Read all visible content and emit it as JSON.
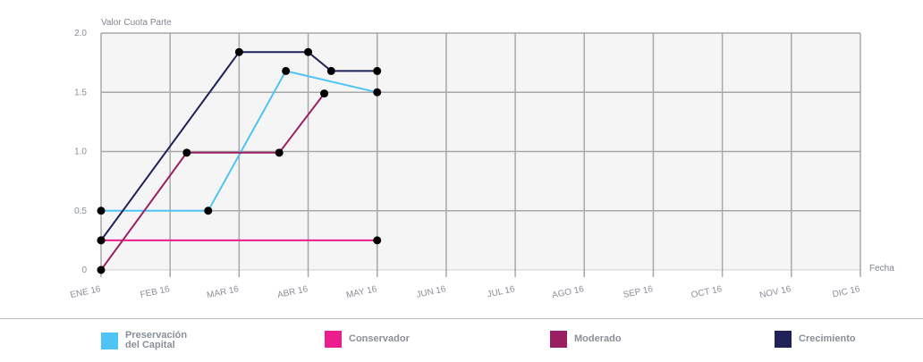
{
  "chart_data": {
    "type": "line",
    "ylabel": "Valor Cuota Parte",
    "xlabel": "Fecha",
    "ylim": [
      0,
      2
    ],
    "y_ticks": [
      {
        "value": 0,
        "label": "0"
      },
      {
        "value": 0.5,
        "label": "0.5"
      },
      {
        "value": 1.0,
        "label": "1.0"
      },
      {
        "value": 1.5,
        "label": "1.5"
      },
      {
        "value": 2.0,
        "label": "2.0"
      }
    ],
    "x_months": [
      "ENE 16",
      "FEB 16",
      "MAR 16",
      "ABR 16",
      "MAY 16",
      "JUN 16",
      "JUL 16",
      "AGO 16",
      "SEP 16",
      "OCT 16",
      "NOV 16",
      "DIC 16"
    ],
    "grid": true,
    "legend_position": "bottom",
    "series": [
      {
        "name": "Preservación\ndel Capital",
        "color": "#4ec3f5",
        "points": [
          {
            "x": "2016-01-01",
            "y": 0.5
          },
          {
            "x": "2016-02-17",
            "y": 0.5
          },
          {
            "x": "2016-03-22",
            "y": 1.68
          },
          {
            "x": "2016-05-01",
            "y": 1.5
          }
        ]
      },
      {
        "name": "Conservador",
        "color": "#ec1d8c",
        "points": [
          {
            "x": "2016-01-01",
            "y": 0.25
          },
          {
            "x": "2016-05-01",
            "y": 0.25
          }
        ]
      },
      {
        "name": "Moderado",
        "color": "#9b1f63",
        "points": [
          {
            "x": "2016-01-01",
            "y": 0.0
          },
          {
            "x": "2016-02-08",
            "y": 0.99
          },
          {
            "x": "2016-03-19",
            "y": 0.99
          },
          {
            "x": "2016-04-08",
            "y": 1.49
          }
        ]
      },
      {
        "name": "Crecimiento",
        "color": "#1f2157",
        "points": [
          {
            "x": "2016-01-01",
            "y": 0.25
          },
          {
            "x": "2016-03-01",
            "y": 1.84
          },
          {
            "x": "2016-04-01",
            "y": 1.84
          },
          {
            "x": "2016-04-11",
            "y": 1.68
          },
          {
            "x": "2016-05-01",
            "y": 1.68
          }
        ]
      }
    ]
  }
}
